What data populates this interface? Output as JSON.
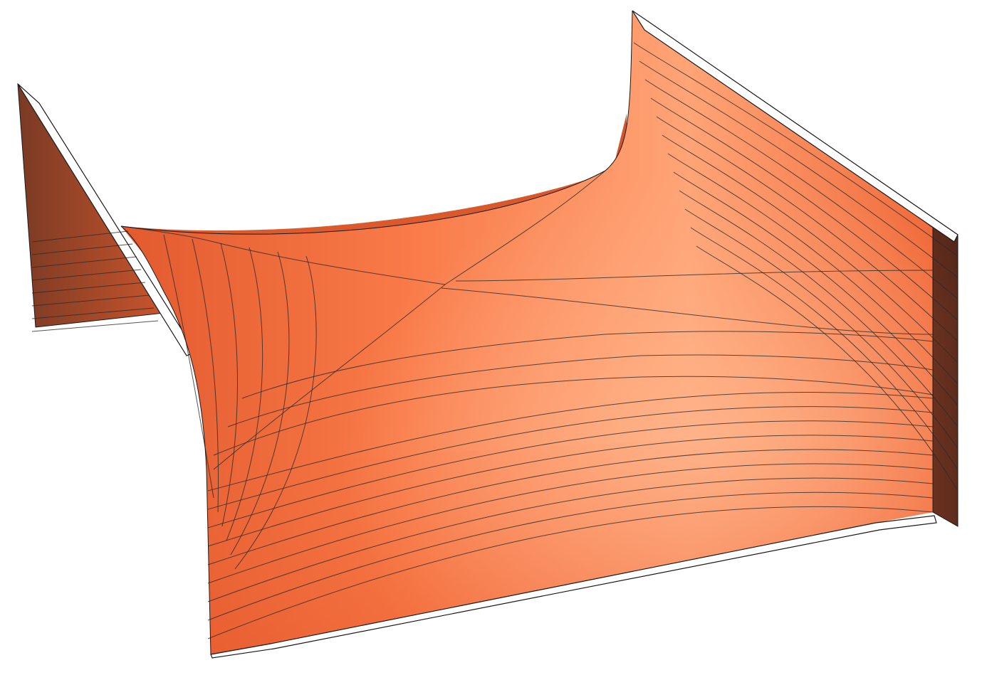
{
  "figure": {
    "kind": "3d-surface-plot",
    "description_visible_text": "",
    "colors": {
      "background": "#ffffff",
      "surface_light": "#ffa476",
      "surface_mid": "#f2693a",
      "surface_dark": "#6e3322",
      "edge": "#1a1a1a",
      "contour": "#2a2a2a"
    },
    "contour_levels": 16
  }
}
